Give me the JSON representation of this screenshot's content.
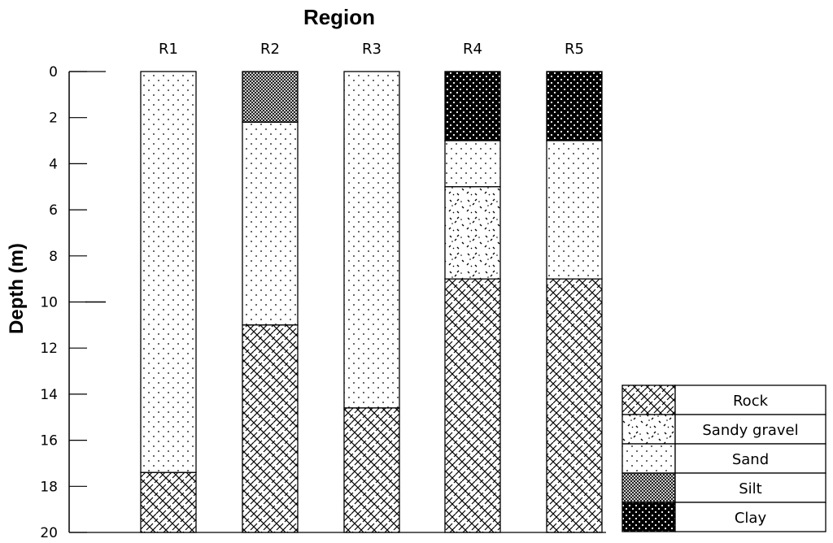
{
  "chart_data": {
    "type": "stacked-column",
    "title": "Region",
    "ylabel": "Depth (m)",
    "xlabel": "",
    "ylim": [
      0,
      20
    ],
    "y_ticks": [
      "0",
      "2",
      "4",
      "6",
      "8",
      "10",
      "12",
      "14",
      "16",
      "18",
      "20"
    ],
    "y_inverted": true,
    "categories": [
      "R1",
      "R2",
      "R3",
      "R4",
      "R5"
    ],
    "columns": [
      {
        "name": "R1",
        "layers": [
          {
            "material": "Sand",
            "top": 0,
            "bottom": 17.4
          },
          {
            "material": "Rock",
            "top": 17.4,
            "bottom": 20
          }
        ]
      },
      {
        "name": "R2",
        "layers": [
          {
            "material": "Silt",
            "top": 0,
            "bottom": 2.2
          },
          {
            "material": "Sand",
            "top": 2.2,
            "bottom": 11.0
          },
          {
            "material": "Rock",
            "top": 11.0,
            "bottom": 20
          }
        ]
      },
      {
        "name": "R3",
        "layers": [
          {
            "material": "Sand",
            "top": 0,
            "bottom": 14.6
          },
          {
            "material": "Rock",
            "top": 14.6,
            "bottom": 20
          }
        ]
      },
      {
        "name": "R4",
        "layers": [
          {
            "material": "Clay",
            "top": 0,
            "bottom": 3.0
          },
          {
            "material": "Sand",
            "top": 3.0,
            "bottom": 5.0
          },
          {
            "material": "Sandy gravel",
            "top": 5.0,
            "bottom": 9.0
          },
          {
            "material": "Rock",
            "top": 9.0,
            "bottom": 20
          }
        ]
      },
      {
        "name": "R5",
        "layers": [
          {
            "material": "Clay",
            "top": 0,
            "bottom": 3.0
          },
          {
            "material": "Sand",
            "top": 3.0,
            "bottom": 9.0
          },
          {
            "material": "Rock",
            "top": 9.0,
            "bottom": 20
          }
        ]
      }
    ],
    "legend": {
      "position": "bottom-right",
      "entries": [
        {
          "label": "Rock",
          "pattern": "rock-pattern"
        },
        {
          "label": "Sandy gravel",
          "pattern": "sandy-gravel-pattern"
        },
        {
          "label": "Sand",
          "pattern": "sand-pattern"
        },
        {
          "label": "Silt",
          "pattern": "silt-pattern"
        },
        {
          "label": "Clay",
          "pattern": "clay-pattern"
        }
      ]
    },
    "grid": false
  }
}
